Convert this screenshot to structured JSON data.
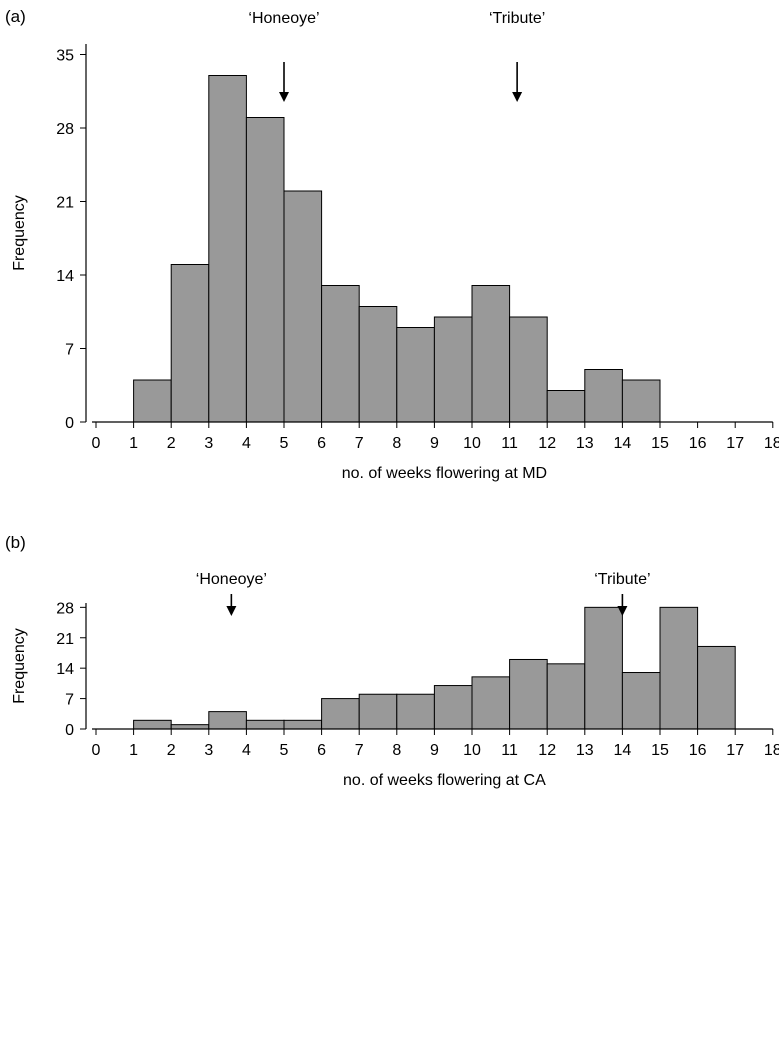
{
  "chart_data": [
    {
      "type": "bar",
      "panel_label": "(a)",
      "xlabel": "no. of weeks flowering at MD",
      "ylabel": "Frequency",
      "x_ticks": [
        0,
        1,
        2,
        3,
        4,
        5,
        6,
        7,
        8,
        9,
        10,
        11,
        12,
        13,
        14,
        15,
        16,
        17,
        18
      ],
      "y_ticks": [
        0,
        7,
        14,
        21,
        28,
        35
      ],
      "xlim": [
        0,
        18
      ],
      "ylim": [
        0,
        36
      ],
      "bins": [
        [
          1,
          2
        ],
        [
          2,
          3
        ],
        [
          3,
          4
        ],
        [
          4,
          5
        ],
        [
          5,
          6
        ],
        [
          6,
          7
        ],
        [
          7,
          8
        ],
        [
          8,
          9
        ],
        [
          9,
          10
        ],
        [
          10,
          11
        ],
        [
          11,
          12
        ],
        [
          12,
          13
        ],
        [
          13,
          14
        ],
        [
          14,
          15
        ]
      ],
      "values": [
        4,
        15,
        33,
        29,
        22,
        13,
        11,
        9,
        10,
        13,
        10,
        3,
        5,
        4
      ],
      "bar_color": "#999999",
      "annotations": [
        {
          "text": "‘Honeoye’",
          "x": 5.0
        },
        {
          "text": "‘Tribute’",
          "x": 11.2
        }
      ]
    },
    {
      "type": "bar",
      "panel_label": "(b)",
      "xlabel": "no. of weeks flowering at CA",
      "ylabel": "Frequency",
      "x_ticks": [
        0,
        1,
        2,
        3,
        4,
        5,
        6,
        7,
        8,
        9,
        10,
        11,
        12,
        13,
        14,
        15,
        16,
        17,
        18
      ],
      "y_ticks": [
        0,
        7,
        14,
        21,
        28
      ],
      "xlim": [
        0,
        18
      ],
      "ylim": [
        0,
        29
      ],
      "bins": [
        [
          1,
          2
        ],
        [
          2,
          3
        ],
        [
          3,
          4
        ],
        [
          4,
          5
        ],
        [
          5,
          6
        ],
        [
          6,
          7
        ],
        [
          7,
          8
        ],
        [
          8,
          9
        ],
        [
          9,
          10
        ],
        [
          10,
          11
        ],
        [
          11,
          12
        ],
        [
          12,
          13
        ],
        [
          13,
          14
        ],
        [
          14,
          15
        ],
        [
          15,
          16
        ],
        [
          16,
          17
        ]
      ],
      "values": [
        2,
        1,
        4,
        2,
        2,
        7,
        8,
        8,
        10,
        12,
        16,
        15,
        28,
        13,
        28,
        19
      ],
      "bar_color": "#999999",
      "annotations": [
        {
          "text": "‘Honeoye’",
          "x": 3.6
        },
        {
          "text": "‘Tribute’",
          "x": 14.0
        }
      ]
    }
  ]
}
